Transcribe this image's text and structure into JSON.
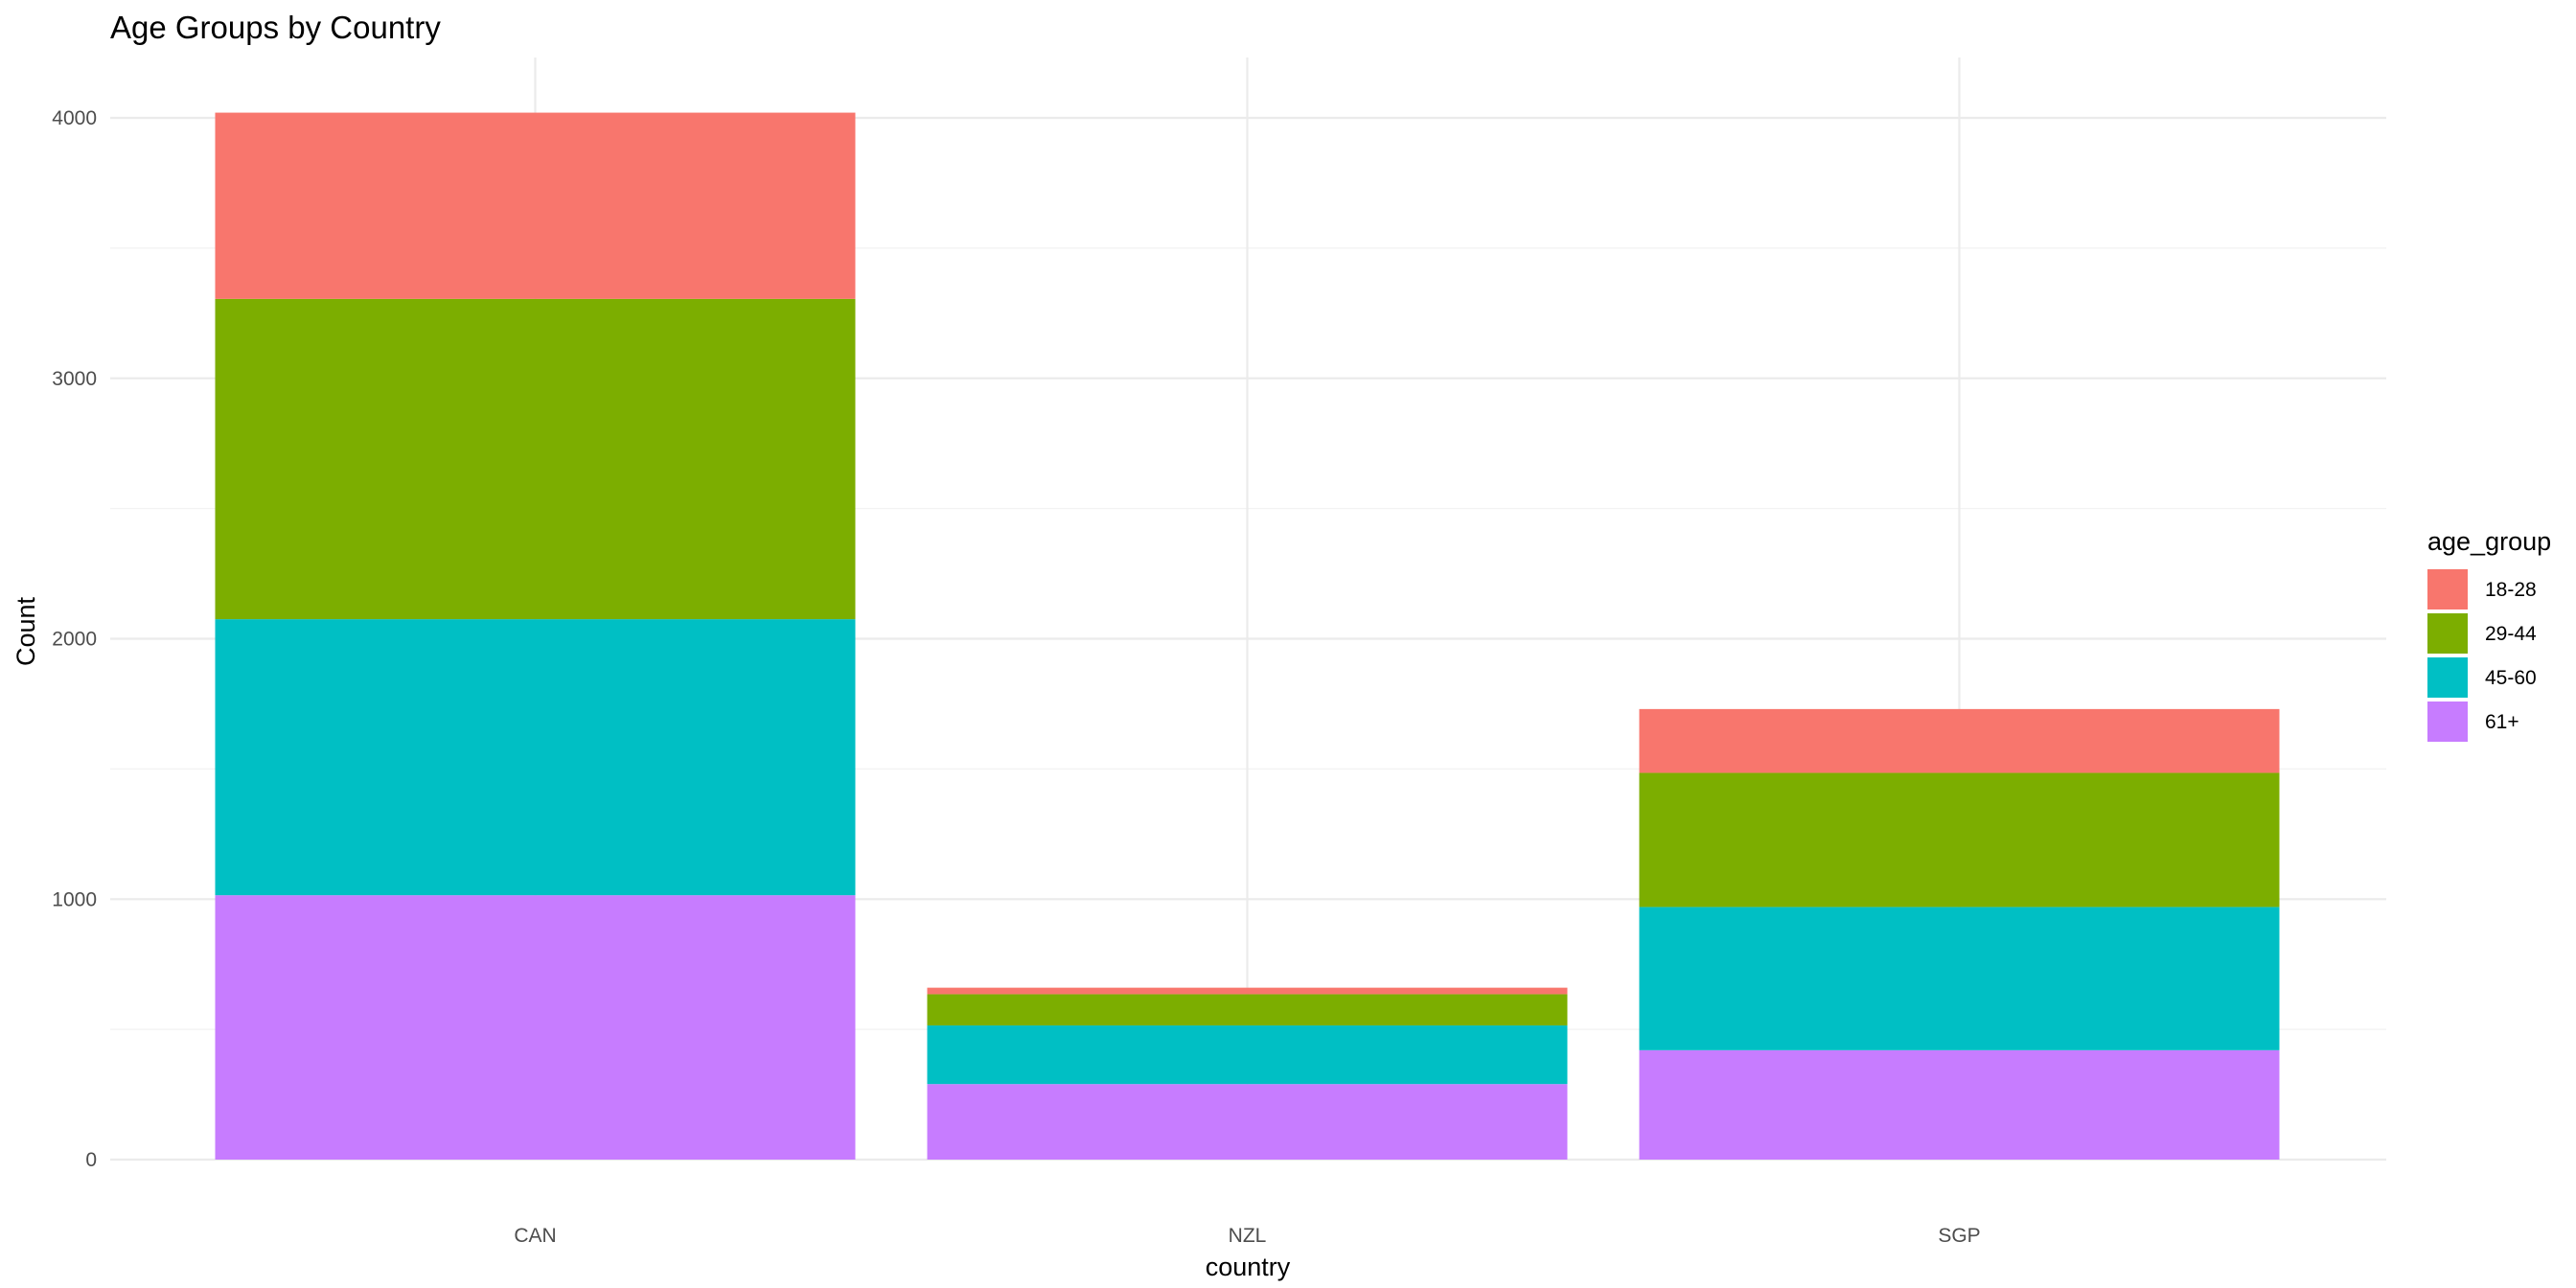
{
  "chart_data": {
    "type": "bar",
    "stacked": true,
    "title": "Age Groups by Country",
    "xlabel": "country",
    "ylabel": "Count",
    "categories": [
      "CAN",
      "NZL",
      "SGP"
    ],
    "series": [
      {
        "name": "61+",
        "color": "#C77CFF",
        "values": [
          1015,
          290,
          420
        ]
      },
      {
        "name": "45-60",
        "color": "#00BFC4",
        "values": [
          1060,
          225,
          550
        ]
      },
      {
        "name": "29-44",
        "color": "#7CAE00",
        "values": [
          1230,
          120,
          515
        ]
      },
      {
        "name": "18-28",
        "color": "#F8766D",
        "values": [
          715,
          25,
          245
        ]
      }
    ],
    "ylim": [
      0,
      4200
    ],
    "yticks": [
      0,
      1000,
      2000,
      3000,
      4000
    ],
    "grid": true,
    "legend": {
      "title": "age_group",
      "position": "right",
      "items": [
        {
          "label": "18-28",
          "color": "#F8766D"
        },
        {
          "label": "29-44",
          "color": "#7CAE00"
        },
        {
          "label": "45-60",
          "color": "#00BFC4"
        },
        {
          "label": "61+",
          "color": "#C77CFF"
        }
      ]
    }
  }
}
